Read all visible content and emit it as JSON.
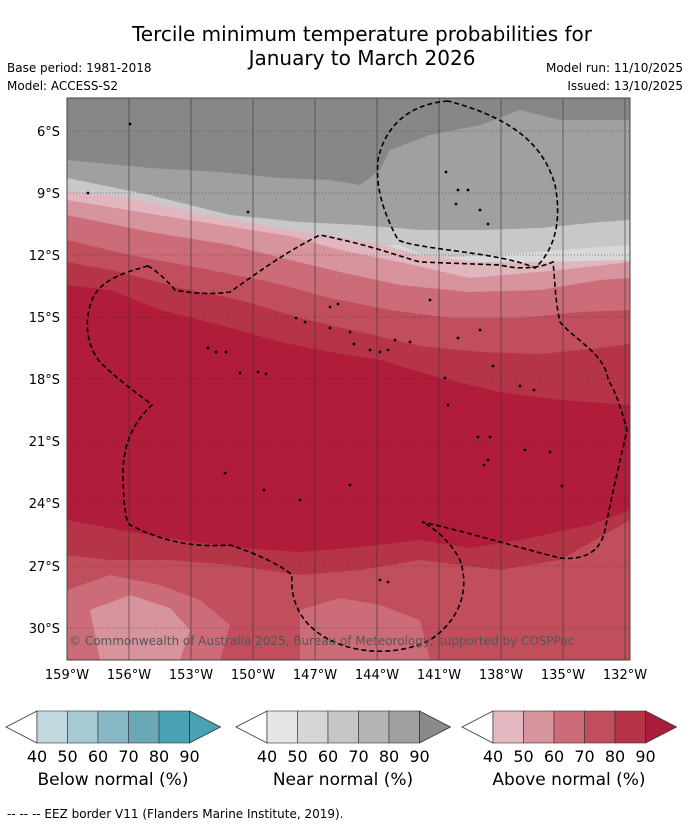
{
  "title_line1": "Tercile minimum temperature probabilities for",
  "title_line2": "January to March 2026",
  "base_period": "Base period: 1981-2018",
  "model": "Model: ACCESS-S2",
  "model_run": "Model run: 11/10/2025",
  "issued": "Issued: 13/10/2025",
  "copyright": "© Commonwealth of Australia 2025, Bureau of Meteorology, supported by COSPPac",
  "footer": "-- -- -- EEZ border V11 (Flanders Marine Institute, 2019).",
  "lat_labels": [
    "6°S",
    "9°S",
    "12°S",
    "15°S",
    "18°S",
    "21°S",
    "24°S",
    "27°S",
    "30°S"
  ],
  "lon_labels": [
    "159°W",
    "156°W",
    "153°W",
    "150°W",
    "147°W",
    "144°W",
    "141°W",
    "138°W",
    "135°W",
    "132°W"
  ],
  "legends": [
    {
      "caption": "Below normal (%)",
      "ticks": [
        "40",
        "50",
        "60",
        "70",
        "80",
        "90"
      ],
      "colors": [
        "#c0d8de",
        "#a6cad2",
        "#88b8c4",
        "#6aa8b6",
        "#48a2b4"
      ],
      "arrow": "#48a2b4"
    },
    {
      "caption": "Near normal (%)",
      "ticks": [
        "40",
        "50",
        "60",
        "70",
        "80",
        "90"
      ],
      "colors": [
        "#e6e6e6",
        "#d6d6d6",
        "#c6c6c6",
        "#b4b4b4",
        "#a0a0a0"
      ],
      "arrow": "#8a8a8a"
    },
    {
      "caption": "Above normal (%)",
      "ticks": [
        "40",
        "50",
        "60",
        "70",
        "80",
        "90"
      ],
      "colors": [
        "#e4b8c0",
        "#d8949c",
        "#cc6c78",
        "#c04e5c",
        "#b63448"
      ],
      "arrow": "#a81c3c"
    }
  ]
}
